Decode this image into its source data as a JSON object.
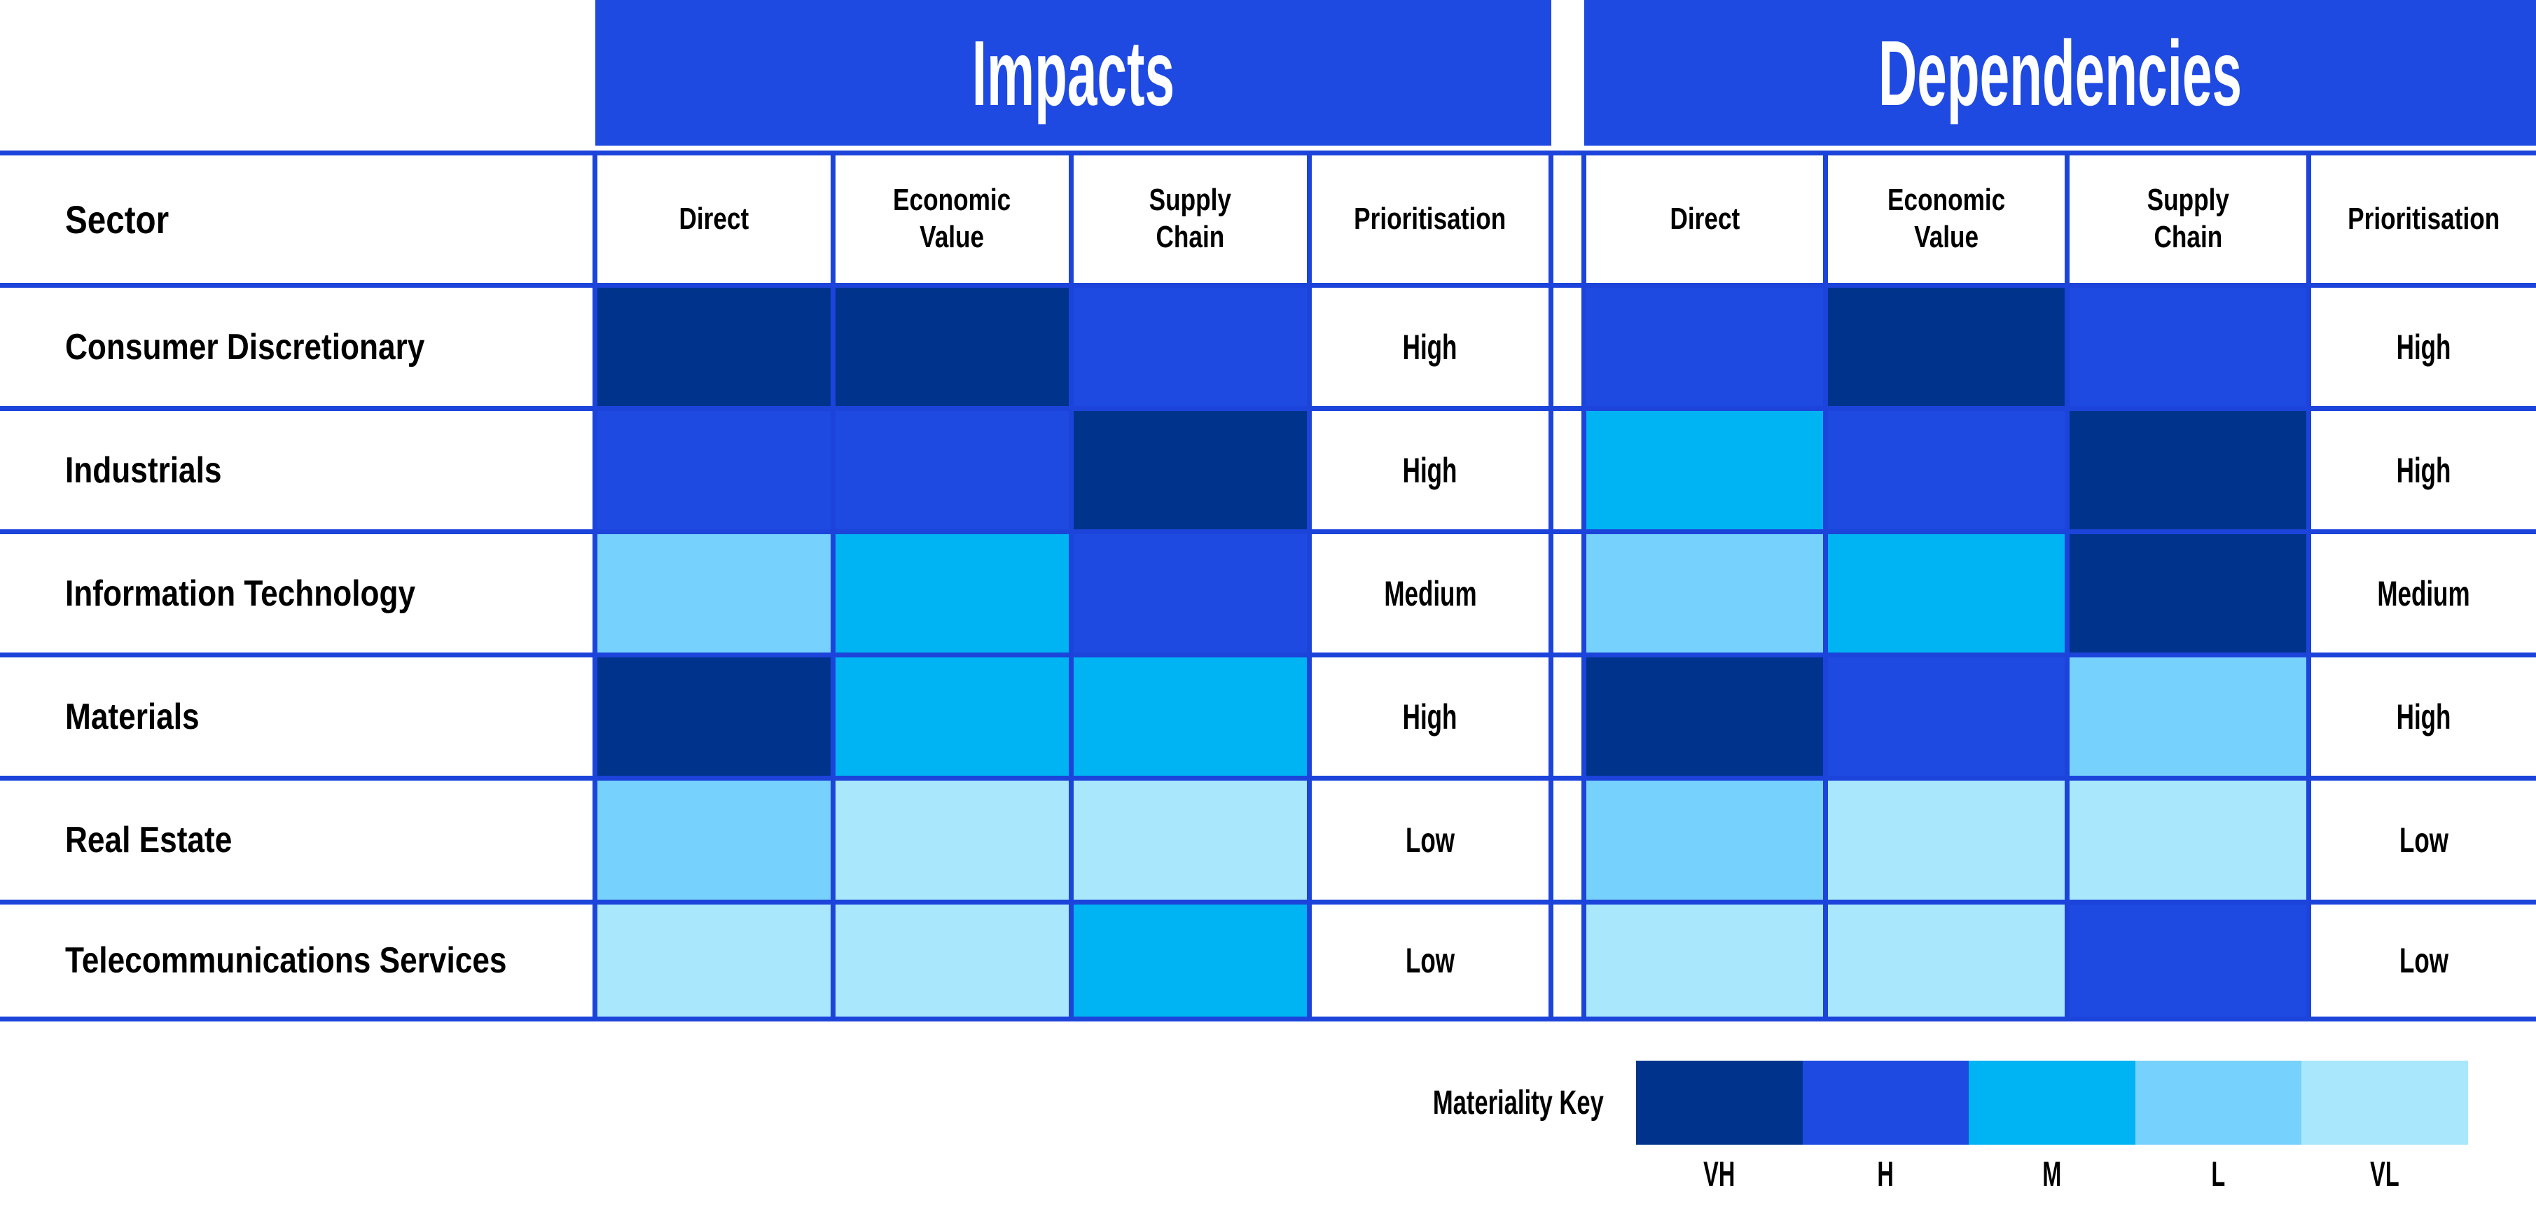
{
  "colors": {
    "band": "#1E4AE2",
    "grid_border": "#1C44DA",
    "header_text": "#FFFFFF",
    "body_text": "#000000",
    "VH": "#00348C",
    "H": "#1E4AE2",
    "M": "#00B3F2",
    "L": "#76D1FC",
    "VL": "#A9E7FD"
  },
  "legend": {
    "label": "Materiality Key",
    "levels": [
      "VH",
      "H",
      "M",
      "L",
      "VL"
    ]
  },
  "chart_data": {
    "type": "heatmap",
    "row_header": "Sector",
    "group_headers": [
      "Impacts",
      "Dependencies"
    ],
    "column_headers": [
      "Direct",
      "Economic\nValue",
      "Supply\nChain",
      "Prioritisation"
    ],
    "materiality_scale": [
      "VH",
      "H",
      "M",
      "L",
      "VL"
    ],
    "legend_title": "Materiality Key",
    "rows": [
      {
        "sector": "Consumer Discretionary",
        "impacts": [
          "VH",
          "VH",
          "H"
        ],
        "impacts_prioritisation": "High",
        "dependencies": [
          "H",
          "VH",
          "H"
        ],
        "dependencies_prioritisation": "High"
      },
      {
        "sector": "Industrials",
        "impacts": [
          "H",
          "H",
          "VH"
        ],
        "impacts_prioritisation": "High",
        "dependencies": [
          "M",
          "H",
          "VH"
        ],
        "dependencies_prioritisation": "High"
      },
      {
        "sector": "Information Technology",
        "impacts": [
          "L",
          "M",
          "H"
        ],
        "impacts_prioritisation": "Medium",
        "dependencies": [
          "L",
          "M",
          "VH"
        ],
        "dependencies_prioritisation": "Medium"
      },
      {
        "sector": "Materials",
        "impacts": [
          "VH",
          "M",
          "M"
        ],
        "impacts_prioritisation": "High",
        "dependencies": [
          "VH",
          "H",
          "L"
        ],
        "dependencies_prioritisation": "High"
      },
      {
        "sector": "Real Estate",
        "impacts": [
          "L",
          "VL",
          "VL"
        ],
        "impacts_prioritisation": "Low",
        "dependencies": [
          "L",
          "VL",
          "VL"
        ],
        "dependencies_prioritisation": "Low"
      },
      {
        "sector": "Telecommunications Services",
        "impacts": [
          "VL",
          "VL",
          "M"
        ],
        "impacts_prioritisation": "Low",
        "dependencies": [
          "VL",
          "VL",
          "H"
        ],
        "dependencies_prioritisation": "Low"
      }
    ]
  }
}
